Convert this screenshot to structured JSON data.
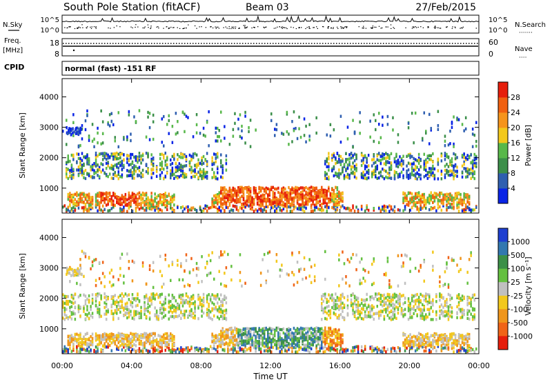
{
  "header": {
    "station": "South Pole Station (fitACF)",
    "beam": "Beam 03",
    "date": "27/Feb/2015"
  },
  "noise_panel": {
    "left_label": "N.Sky",
    "right_label": "N.Search",
    "right_label_dots": "·······",
    "left_ticks": [
      "10^5",
      "10^0"
    ],
    "right_ticks": [
      "10^5",
      "10^0"
    ]
  },
  "freq_panel": {
    "left_label_1": "Freq.",
    "left_label_2": "[MHz]",
    "left_ticks": [
      "18",
      "8"
    ],
    "right_label": "Nave",
    "right_label_dots": "····",
    "right_ticks": [
      "60",
      "0"
    ]
  },
  "cpid": {
    "label": "CPID",
    "value": "normal (fast) -151 RF"
  },
  "colors": {
    "power_scale": [
      "#0a24e6",
      "#2f5fb0",
      "#3c8f4a",
      "#58b84a",
      "#f2c81c",
      "#f5941c",
      "#f06010",
      "#e61e0c"
    ],
    "velocity_scale": [
      "#1e3fd0",
      "#3278b0",
      "#3c9048",
      "#64c040",
      "#c0c0c0",
      "#f2c81c",
      "#f0961c",
      "#f06418",
      "#e61e0c"
    ]
  },
  "chart_data": [
    {
      "type": "heatmap",
      "name": "power",
      "xlabel": "",
      "ylabel": "Slant Range [km]",
      "x_ticks": [
        "00:00",
        "04:00",
        "08:00",
        "12:00",
        "16:00",
        "20:00",
        "00:00"
      ],
      "y_ticks": [
        1000,
        2000,
        3000,
        4000
      ],
      "ylim": [
        180,
        4600
      ],
      "xlim": [
        0,
        24
      ],
      "colorbar": {
        "label": "Power [dB]",
        "ticks": [
          "4",
          "8",
          "12",
          "16",
          "20",
          "24",
          "28"
        ],
        "range": [
          0,
          30
        ]
      }
    },
    {
      "type": "heatmap",
      "name": "velocity",
      "xlabel": "Time UT",
      "ylabel": "Slant Range [km]",
      "x_ticks": [
        "00:00",
        "04:00",
        "08:00",
        "12:00",
        "16:00",
        "20:00",
        "00:00"
      ],
      "y_ticks": [
        1000,
        2000,
        3000,
        4000
      ],
      "ylim": [
        180,
        4600
      ],
      "xlim": [
        0,
        24
      ],
      "colorbar": {
        "label": "Velocity [m s⁻¹]",
        "ticks": [
          "1000",
          "500",
          "100",
          "25",
          "-25",
          "-100",
          "-500",
          "-1000"
        ]
      }
    }
  ]
}
